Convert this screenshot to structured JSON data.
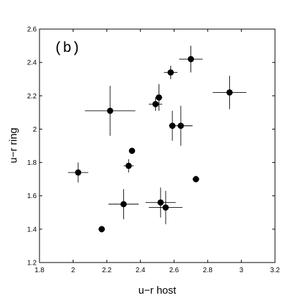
{
  "chart_data": {
    "type": "scatter",
    "panel_label": "(b)",
    "title": "",
    "xlabel": "u−r host",
    "ylabel": "u−r ring",
    "xlim": [
      1.8,
      3.2
    ],
    "ylim": [
      1.2,
      2.6
    ],
    "xticks": [
      1.8,
      2,
      2.2,
      2.4,
      2.6,
      2.8,
      3,
      3.2
    ],
    "xtick_labels": [
      "1.8",
      "2",
      "2.2",
      "2.4",
      "2.6",
      "2.8",
      "3",
      "3.2"
    ],
    "yticks": [
      1.2,
      1.4,
      1.6,
      1.8,
      2,
      2.2,
      2.4,
      2.6
    ],
    "ytick_labels": [
      "1.2",
      "1.4",
      "1.6",
      "1.8",
      "2",
      "2.2",
      "2.4",
      "2.6"
    ],
    "grid": false,
    "marker_color": "#000000",
    "points": [
      {
        "x": 2.03,
        "y": 1.74,
        "xerr": 0.06,
        "yerr": 0.06
      },
      {
        "x": 2.17,
        "y": 1.4,
        "xerr": 0.02,
        "yerr": 0.02
      },
      {
        "x": 2.22,
        "y": 2.11,
        "xerr": 0.15,
        "yerr": 0.15
      },
      {
        "x": 2.3,
        "y": 1.55,
        "xerr": 0.09,
        "yerr": 0.09
      },
      {
        "x": 2.33,
        "y": 1.78,
        "xerr": 0.03,
        "yerr": 0.04
      },
      {
        "x": 2.35,
        "y": 1.87,
        "xerr": 0,
        "yerr": 0
      },
      {
        "x": 2.49,
        "y": 2.15,
        "xerr": 0.04,
        "yerr": 0.04
      },
      {
        "x": 2.51,
        "y": 2.19,
        "xerr": 0.02,
        "yerr": 0.08
      },
      {
        "x": 2.52,
        "y": 1.56,
        "xerr": 0.09,
        "yerr": 0.09
      },
      {
        "x": 2.55,
        "y": 1.53,
        "xerr": 0.1,
        "yerr": 0.1
      },
      {
        "x": 2.58,
        "y": 2.34,
        "xerr": 0.04,
        "yerr": 0.04
      },
      {
        "x": 2.59,
        "y": 2.02,
        "xerr": 0.02,
        "yerr": 0.09
      },
      {
        "x": 2.64,
        "y": 2.02,
        "xerr": 0.07,
        "yerr": 0.12
      },
      {
        "x": 2.7,
        "y": 2.42,
        "xerr": 0.07,
        "yerr": 0.08
      },
      {
        "x": 2.73,
        "y": 1.7,
        "xerr": 0.02,
        "yerr": 0.02
      },
      {
        "x": 2.93,
        "y": 2.22,
        "xerr": 0.1,
        "yerr": 0.1
      }
    ]
  }
}
